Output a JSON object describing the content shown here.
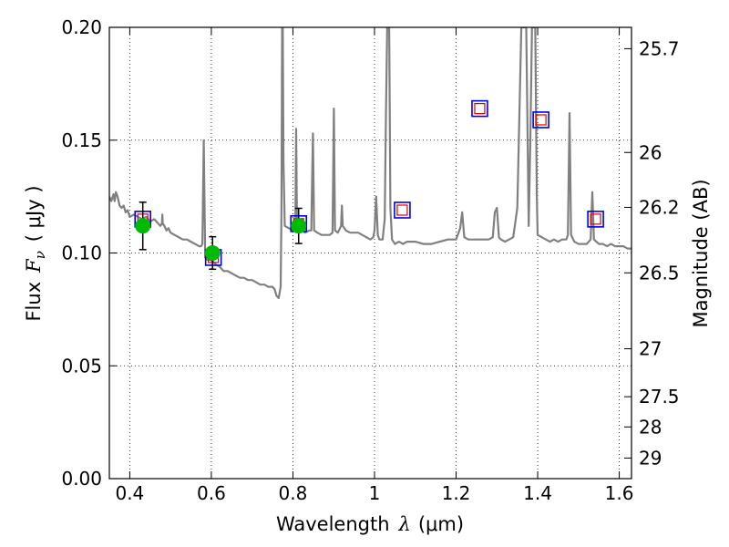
{
  "chart_data": {
    "type": "scatter",
    "xlabel_prefix": "Wavelength",
    "xlabel_symbol": "λ",
    "xlabel_unit": "(μm)",
    "ylabel_prefix": "Flux",
    "ylabel_symbol": "F",
    "ylabel_subscript": "ν",
    "ylabel_unit": "( μJy )",
    "y2label": "Magnitude (AB)",
    "xlim": [
      0.35,
      1.63
    ],
    "ylim": [
      0.0,
      0.2
    ],
    "grid": true,
    "x_ticks": [
      0.4,
      0.6,
      0.8,
      1.0,
      1.2,
      1.4,
      1.6
    ],
    "x_tick_labels": [
      "0.4",
      "0.6",
      "0.8",
      "1",
      "1.2",
      "1.4",
      "1.6"
    ],
    "y_ticks": [
      0.0,
      0.05,
      0.1,
      0.15,
      0.2
    ],
    "y_tick_labels": [
      "0.00",
      "0.05",
      "0.10",
      "0.15",
      "0.20"
    ],
    "y2_ticks": [
      {
        "mag": 25.7,
        "label": "25.7"
      },
      {
        "mag": 26.0,
        "label": "26"
      },
      {
        "mag": 26.2,
        "label": "26.2"
      },
      {
        "mag": 26.5,
        "label": "26.5"
      },
      {
        "mag": 27.0,
        "label": "27"
      },
      {
        "mag": 27.5,
        "label": "27.5"
      },
      {
        "mag": 28.0,
        "label": "28"
      },
      {
        "mag": 29.0,
        "label": "29"
      }
    ],
    "colors": {
      "spectrum": "#808080",
      "observed": "#00bb00",
      "model_outer": "#0000ee",
      "model_inner": "#dd0000",
      "errorbar": "#000000",
      "grid": "#000000"
    },
    "series": [
      {
        "role": "template-spectrum",
        "points": [
          [
            0.35,
            0.125
          ],
          [
            0.355,
            0.123
          ],
          [
            0.36,
            0.126
          ],
          [
            0.363,
            0.123
          ],
          [
            0.366,
            0.127
          ],
          [
            0.37,
            0.125
          ],
          [
            0.375,
            0.121
          ],
          [
            0.38,
            0.12
          ],
          [
            0.385,
            0.121
          ],
          [
            0.39,
            0.118
          ],
          [
            0.395,
            0.119
          ],
          [
            0.4,
            0.116
          ],
          [
            0.41,
            0.117
          ],
          [
            0.42,
            0.116
          ],
          [
            0.43,
            0.115
          ],
          [
            0.44,
            0.116
          ],
          [
            0.45,
            0.114
          ],
          [
            0.46,
            0.115
          ],
          [
            0.47,
            0.113
          ],
          [
            0.475,
            0.112
          ],
          [
            0.479,
            0.113
          ],
          [
            0.48,
            0.117
          ],
          [
            0.481,
            0.113
          ],
          [
            0.485,
            0.112
          ],
          [
            0.49,
            0.11
          ],
          [
            0.495,
            0.111
          ],
          [
            0.5,
            0.109
          ],
          [
            0.51,
            0.108
          ],
          [
            0.52,
            0.107
          ],
          [
            0.53,
            0.106
          ],
          [
            0.54,
            0.106
          ],
          [
            0.55,
            0.105
          ],
          [
            0.56,
            0.104
          ],
          [
            0.57,
            0.103
          ],
          [
            0.575,
            0.103
          ],
          [
            0.578,
            0.104
          ],
          [
            0.5815,
            0.15
          ],
          [
            0.585,
            0.098
          ],
          [
            0.59,
            0.097
          ],
          [
            0.6,
            0.097
          ],
          [
            0.61,
            0.095
          ],
          [
            0.62,
            0.094
          ],
          [
            0.63,
            0.092
          ],
          [
            0.64,
            0.092
          ],
          [
            0.65,
            0.091
          ],
          [
            0.66,
            0.09
          ],
          [
            0.67,
            0.089
          ],
          [
            0.68,
            0.089
          ],
          [
            0.69,
            0.088
          ],
          [
            0.7,
            0.088
          ],
          [
            0.71,
            0.087
          ],
          [
            0.72,
            0.086
          ],
          [
            0.73,
            0.086
          ],
          [
            0.74,
            0.085
          ],
          [
            0.75,
            0.085
          ],
          [
            0.755,
            0.084
          ],
          [
            0.76,
            0.081
          ],
          [
            0.765,
            0.08
          ],
          [
            0.77,
            0.085
          ],
          [
            0.772,
            0.12
          ],
          [
            0.7735,
            0.2
          ],
          [
            0.775,
            0.2
          ],
          [
            0.777,
            0.14
          ],
          [
            0.78,
            0.112
          ],
          [
            0.79,
            0.111
          ],
          [
            0.8,
            0.11
          ],
          [
            0.806,
            0.111
          ],
          [
            0.808,
            0.155
          ],
          [
            0.81,
            0.112
          ],
          [
            0.82,
            0.11
          ],
          [
            0.83,
            0.109
          ],
          [
            0.84,
            0.11
          ],
          [
            0.845,
            0.11
          ],
          [
            0.849,
            0.153
          ],
          [
            0.852,
            0.11
          ],
          [
            0.86,
            0.109
          ],
          [
            0.87,
            0.108
          ],
          [
            0.88,
            0.108
          ],
          [
            0.89,
            0.108
          ],
          [
            0.897,
            0.109
          ],
          [
            0.9005,
            0.164
          ],
          [
            0.903,
            0.11
          ],
          [
            0.91,
            0.109
          ],
          [
            0.918,
            0.112
          ],
          [
            0.92,
            0.121
          ],
          [
            0.922,
            0.112
          ],
          [
            0.93,
            0.11
          ],
          [
            0.94,
            0.109
          ],
          [
            0.95,
            0.109
          ],
          [
            0.96,
            0.109
          ],
          [
            0.97,
            0.108
          ],
          [
            0.98,
            0.107
          ],
          [
            0.99,
            0.106
          ],
          [
            0.997,
            0.107
          ],
          [
            1.0,
            0.11
          ],
          [
            1.004,
            0.125
          ],
          [
            1.008,
            0.108
          ],
          [
            1.012,
            0.106
          ],
          [
            1.02,
            0.106
          ],
          [
            1.025,
            0.115
          ],
          [
            1.028,
            0.16
          ],
          [
            1.031,
            0.2
          ],
          [
            1.036,
            0.2
          ],
          [
            1.039,
            0.12
          ],
          [
            1.043,
            0.106
          ],
          [
            1.05,
            0.104
          ],
          [
            1.06,
            0.105
          ],
          [
            1.07,
            0.104
          ],
          [
            1.08,
            0.105
          ],
          [
            1.09,
            0.105
          ],
          [
            1.1,
            0.105
          ],
          [
            1.12,
            0.104
          ],
          [
            1.14,
            0.104
          ],
          [
            1.16,
            0.105
          ],
          [
            1.18,
            0.106
          ],
          [
            1.2,
            0.106
          ],
          [
            1.21,
            0.111
          ],
          [
            1.215,
            0.118
          ],
          [
            1.22,
            0.107
          ],
          [
            1.23,
            0.106
          ],
          [
            1.24,
            0.106
          ],
          [
            1.25,
            0.106
          ],
          [
            1.26,
            0.106
          ],
          [
            1.27,
            0.106
          ],
          [
            1.28,
            0.106
          ],
          [
            1.29,
            0.107
          ],
          [
            1.295,
            0.118
          ],
          [
            1.3,
            0.12
          ],
          [
            1.305,
            0.107
          ],
          [
            1.31,
            0.106
          ],
          [
            1.32,
            0.105
          ],
          [
            1.33,
            0.106
          ],
          [
            1.34,
            0.107
          ],
          [
            1.35,
            0.12
          ],
          [
            1.36,
            0.2
          ],
          [
            1.372,
            0.2
          ],
          [
            1.378,
            0.112
          ],
          [
            1.382,
            0.15
          ],
          [
            1.386,
            0.2
          ],
          [
            1.394,
            0.2
          ],
          [
            1.398,
            0.125
          ],
          [
            1.4,
            0.108
          ],
          [
            1.41,
            0.107
          ],
          [
            1.42,
            0.106
          ],
          [
            1.43,
            0.105
          ],
          [
            1.44,
            0.106
          ],
          [
            1.45,
            0.105
          ],
          [
            1.46,
            0.106
          ],
          [
            1.47,
            0.106
          ],
          [
            1.474,
            0.108
          ],
          [
            1.478,
            0.162
          ],
          [
            1.482,
            0.108
          ],
          [
            1.49,
            0.105
          ],
          [
            1.5,
            0.104
          ],
          [
            1.51,
            0.104
          ],
          [
            1.52,
            0.104
          ],
          [
            1.53,
            0.106
          ],
          [
            1.534,
            0.127
          ],
          [
            1.538,
            0.106
          ],
          [
            1.55,
            0.104
          ],
          [
            1.56,
            0.104
          ],
          [
            1.57,
            0.103
          ],
          [
            1.58,
            0.104
          ],
          [
            1.59,
            0.103
          ],
          [
            1.6,
            0.103
          ],
          [
            1.61,
            0.103
          ],
          [
            1.62,
            0.102
          ],
          [
            1.63,
            0.102
          ]
        ]
      },
      {
        "role": "observed-photometry",
        "points": [
          {
            "x": 0.432,
            "y": 0.112,
            "yerr": 0.0105
          },
          {
            "x": 0.603,
            "y": 0.1,
            "yerr": 0.0072
          },
          {
            "x": 0.814,
            "y": 0.112,
            "yerr": 0.0078
          }
        ]
      },
      {
        "role": "model-photometry",
        "points": [
          {
            "x": 0.432,
            "y": 0.115
          },
          {
            "x": 0.605,
            "y": 0.098
          },
          {
            "x": 0.814,
            "y": 0.113
          },
          {
            "x": 1.068,
            "y": 0.119
          },
          {
            "x": 1.258,
            "y": 0.164
          },
          {
            "x": 1.408,
            "y": 0.159
          },
          {
            "x": 1.542,
            "y": 0.115
          }
        ]
      }
    ]
  }
}
